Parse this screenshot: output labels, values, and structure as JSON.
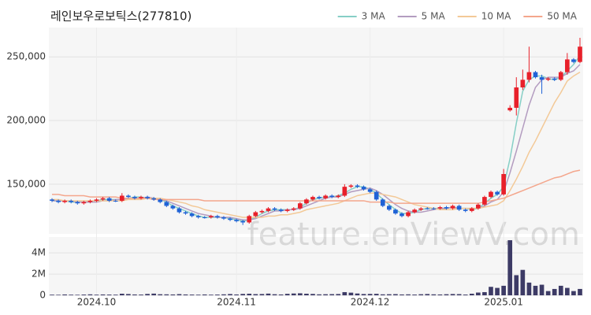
{
  "chart_data": {
    "type": "candlestick",
    "title": "레인보우로보틱스(277810)",
    "watermark": "feature.enViewV.com",
    "legend": "top-right",
    "grid": true,
    "categories": [
      null,
      null,
      null,
      null,
      null,
      null,
      null,
      "2024.10",
      null,
      null,
      null,
      null,
      null,
      null,
      null,
      null,
      null,
      null,
      null,
      null,
      null,
      null,
      null,
      null,
      null,
      null,
      null,
      null,
      null,
      "2024.11",
      null,
      null,
      null,
      null,
      null,
      null,
      null,
      null,
      null,
      null,
      null,
      null,
      null,
      null,
      null,
      null,
      null,
      null,
      null,
      null,
      "2024.12",
      null,
      null,
      null,
      null,
      null,
      null,
      null,
      null,
      null,
      null,
      null,
      null,
      null,
      null,
      null,
      null,
      null,
      null,
      null,
      null,
      "2025.01",
      null,
      null,
      null,
      null,
      null,
      null,
      null,
      null,
      null,
      null,
      null,
      null
    ],
    "open": [
      138000,
      137000,
      136000,
      137000,
      136000,
      135000,
      136000,
      137000,
      138000,
      139000,
      137000,
      137000,
      141000,
      140000,
      139000,
      140000,
      139000,
      138000,
      136000,
      133000,
      131000,
      128000,
      127000,
      125000,
      124000,
      124000,
      125000,
      124000,
      123000,
      122000,
      121000,
      120000,
      125000,
      128000,
      129000,
      131000,
      130000,
      129000,
      130000,
      131000,
      135000,
      138000,
      140000,
      139000,
      141000,
      140000,
      141000,
      148000,
      149000,
      148000,
      146000,
      144000,
      138000,
      133000,
      130000,
      127000,
      125000,
      128000,
      130000,
      131000,
      131000,
      131000,
      132000,
      131000,
      133000,
      130000,
      129000,
      131000,
      134000,
      140000,
      144000,
      142000,
      208000,
      210000,
      226000,
      232000,
      238000,
      234000,
      232000,
      233000,
      232000,
      238000,
      248000,
      246000
    ],
    "high": [
      139000,
      138000,
      138000,
      138000,
      137000,
      137000,
      138000,
      139000,
      140000,
      140000,
      138000,
      143000,
      142000,
      141000,
      141000,
      141000,
      140000,
      139000,
      137000,
      134000,
      132000,
      129000,
      128000,
      126000,
      125000,
      126000,
      126000,
      125000,
      124000,
      123000,
      122000,
      126000,
      129000,
      130000,
      132000,
      132000,
      131000,
      131000,
      132000,
      136000,
      139000,
      141000,
      141000,
      142000,
      142000,
      142000,
      150000,
      150000,
      150000,
      149000,
      147000,
      145000,
      139000,
      134000,
      131000,
      128000,
      129000,
      131000,
      132000,
      132000,
      132000,
      133000,
      133000,
      134000,
      134000,
      131000,
      132000,
      135000,
      141000,
      145000,
      145000,
      162000,
      212000,
      234000,
      240000,
      258000,
      239000,
      236000,
      234000,
      234000,
      239000,
      253000,
      249000,
      265000
    ],
    "low": [
      136000,
      135000,
      135000,
      135000,
      134000,
      134000,
      135000,
      136000,
      137000,
      136000,
      136000,
      136000,
      139000,
      138000,
      138000,
      138000,
      137000,
      135000,
      132000,
      130000,
      127000,
      126000,
      124000,
      123000,
      123000,
      123000,
      123000,
      122000,
      121000,
      120000,
      118000,
      119000,
      124000,
      127000,
      128000,
      129000,
      128000,
      128000,
      129000,
      130000,
      134000,
      137000,
      138000,
      138000,
      139000,
      139000,
      140000,
      147000,
      147000,
      145000,
      143000,
      137000,
      132000,
      129000,
      126000,
      124000,
      124000,
      127000,
      129000,
      130000,
      130000,
      130000,
      130000,
      130000,
      129000,
      128000,
      128000,
      130000,
      133000,
      139000,
      141000,
      141000,
      207000,
      204000,
      224000,
      230000,
      233000,
      221000,
      231000,
      231000,
      231000,
      236000,
      245000,
      245000
    ],
    "close": [
      137000,
      136000,
      137000,
      136000,
      135000,
      136000,
      137000,
      138000,
      139000,
      137000,
      137000,
      141000,
      140000,
      139000,
      140000,
      139000,
      138000,
      136000,
      133000,
      131000,
      128000,
      127000,
      125000,
      124000,
      124000,
      125000,
      124000,
      123000,
      122000,
      121000,
      120000,
      125000,
      128000,
      129000,
      131000,
      130000,
      129000,
      130000,
      131000,
      135000,
      138000,
      140000,
      139000,
      141000,
      140000,
      141000,
      148000,
      149000,
      148000,
      146000,
      144000,
      138000,
      133000,
      130000,
      127000,
      125000,
      128000,
      130000,
      131000,
      131000,
      131000,
      132000,
      131000,
      133000,
      130000,
      129000,
      131000,
      134000,
      140000,
      144000,
      142000,
      158000,
      210000,
      226000,
      232000,
      238000,
      234000,
      232000,
      233000,
      232000,
      238000,
      248000,
      246000,
      258000
    ],
    "up_color": "#e8202a",
    "down_color": "#1f62d6",
    "series": [
      {
        "name": "3 MA",
        "color": "#86cfc6",
        "values": [
          137000,
          137000,
          137000,
          136000,
          136000,
          136000,
          136000,
          137000,
          138000,
          138000,
          138000,
          138000,
          139000,
          140000,
          140000,
          139000,
          139000,
          138000,
          136000,
          133000,
          131000,
          129000,
          127000,
          125000,
          124000,
          124000,
          124000,
          124000,
          123000,
          122000,
          121000,
          122000,
          124000,
          127000,
          129000,
          130000,
          130000,
          130000,
          130000,
          132000,
          135000,
          138000,
          139000,
          140000,
          140000,
          141000,
          143000,
          146000,
          148000,
          148000,
          146000,
          143000,
          138000,
          134000,
          130000,
          127000,
          127000,
          128000,
          130000,
          131000,
          131000,
          131000,
          131000,
          132000,
          131000,
          131000,
          130000,
          131000,
          135000,
          139000,
          142000,
          148000,
          170000,
          198000,
          223000,
          232000,
          235000,
          235000,
          233000,
          232000,
          234000,
          239000,
          244000,
          251000
        ]
      },
      {
        "name": "5 MA",
        "color": "#b39cc0",
        "values": [
          137000,
          137000,
          137000,
          137000,
          136000,
          136000,
          136000,
          136000,
          137000,
          137000,
          138000,
          138000,
          139000,
          139000,
          139000,
          140000,
          139000,
          138000,
          137000,
          135000,
          133000,
          131000,
          129000,
          127000,
          126000,
          125000,
          124000,
          124000,
          124000,
          123000,
          122000,
          122000,
          123000,
          125000,
          127000,
          129000,
          129000,
          130000,
          130000,
          131000,
          133000,
          135000,
          137000,
          139000,
          140000,
          140000,
          142000,
          144000,
          145000,
          146000,
          147000,
          145000,
          142000,
          138000,
          134000,
          131000,
          129000,
          128000,
          128000,
          129000,
          130000,
          131000,
          131000,
          132000,
          131000,
          131000,
          131000,
          131000,
          133000,
          136000,
          138000,
          144000,
          159000,
          176000,
          194000,
          212000,
          226000,
          232000,
          234000,
          234000,
          234000,
          237000,
          239000,
          244000
        ]
      },
      {
        "name": "10 MA",
        "color": "#f3c997",
        "values": [
          138000,
          138000,
          137000,
          137000,
          137000,
          137000,
          137000,
          137000,
          137000,
          137000,
          137000,
          137000,
          138000,
          138000,
          138000,
          139000,
          139000,
          139000,
          138000,
          137000,
          136000,
          135000,
          133000,
          132000,
          130000,
          129000,
          128000,
          127000,
          126000,
          125000,
          124000,
          124000,
          124000,
          124000,
          125000,
          125000,
          126000,
          126000,
          127000,
          128000,
          130000,
          131000,
          132000,
          133000,
          134000,
          135000,
          137000,
          139000,
          141000,
          142000,
          143000,
          143000,
          142000,
          141000,
          140000,
          138000,
          136000,
          134000,
          133000,
          132000,
          131000,
          130000,
          130000,
          130000,
          131000,
          131000,
          131000,
          131000,
          132000,
          133000,
          134000,
          137000,
          145000,
          154000,
          164000,
          175000,
          184000,
          194000,
          204000,
          214000,
          222000,
          231000,
          235000,
          238000
        ]
      },
      {
        "name": "50 MA",
        "color": "#f4a68c",
        "values": [
          142000,
          142000,
          141000,
          141000,
          141000,
          141000,
          140000,
          140000,
          140000,
          140000,
          140000,
          139000,
          139000,
          139000,
          139000,
          139000,
          138000,
          138000,
          138000,
          138000,
          138000,
          138000,
          138000,
          138000,
          137000,
          137000,
          137000,
          137000,
          137000,
          137000,
          137000,
          137000,
          137000,
          137000,
          137000,
          137000,
          137000,
          137000,
          137000,
          137000,
          137000,
          137000,
          137000,
          137000,
          137000,
          137000,
          137000,
          137000,
          137000,
          137000,
          136000,
          136000,
          136000,
          136000,
          135000,
          135000,
          135000,
          135000,
          135000,
          135000,
          135000,
          135000,
          135000,
          135000,
          135000,
          135000,
          135000,
          135000,
          136000,
          137000,
          138000,
          139000,
          141000,
          143000,
          145000,
          147000,
          149000,
          151000,
          153000,
          155000,
          156000,
          158000,
          160000,
          161000
        ]
      }
    ],
    "ylim": [
      111000,
      273000
    ],
    "yticks": [
      {
        "value": 150000,
        "label": "150,000"
      },
      {
        "value": 200000,
        "label": "200,000"
      },
      {
        "value": 250000,
        "label": "250,000"
      }
    ],
    "volume": [
      60000,
      50000,
      80000,
      60000,
      50000,
      70000,
      90000,
      60000,
      80000,
      70000,
      60000,
      150000,
      120000,
      80000,
      70000,
      130000,
      160000,
      100000,
      90000,
      80000,
      110000,
      80000,
      70000,
      60000,
      80000,
      60000,
      70000,
      90000,
      120000,
      80000,
      130000,
      150000,
      110000,
      120000,
      160000,
      100000,
      80000,
      140000,
      170000,
      190000,
      150000,
      130000,
      90000,
      100000,
      110000,
      120000,
      300000,
      250000,
      170000,
      120000,
      130000,
      140000,
      90000,
      100000,
      110000,
      80000,
      90000,
      70000,
      100000,
      120000,
      90000,
      80000,
      100000,
      120000,
      110000,
      70000,
      150000,
      260000,
      300000,
      800000,
      700000,
      900000,
      5200000,
      1900000,
      2400000,
      1200000,
      900000,
      1000000,
      400000,
      600000,
      900000,
      700000,
      400000,
      600000
    ],
    "volume_color": "#3d3b66",
    "y2lim": [
      0,
      5500000
    ],
    "y2ticks": [
      0,
      {
        "value": 2000000,
        "label": "2M"
      },
      {
        "value": 4000000,
        "label": "4M"
      }
    ]
  }
}
